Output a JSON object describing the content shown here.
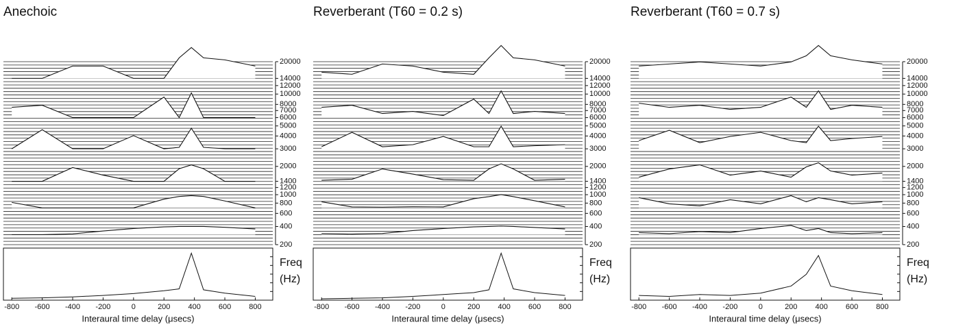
{
  "chart_data": [
    {
      "type": "waterfall",
      "title": "Anechoic",
      "xlabel": "Interaural time delay (μsecs)",
      "ylabel": [
        "Freq",
        "(Hz)"
      ],
      "xlim": [
        -855,
        915
      ],
      "xticks": [
        -800,
        -600,
        -400,
        -200,
        0,
        200,
        400,
        600,
        800
      ],
      "ylim": [
        200,
        20000
      ],
      "yscale": "erb",
      "yticks": [
        200,
        400,
        600,
        800,
        1000,
        1200,
        1400,
        2000,
        3000,
        4000,
        5000,
        6000,
        7000,
        8000,
        10000,
        12000,
        14000,
        20000
      ],
      "x": [
        -800,
        -600,
        -400,
        -200,
        0,
        200,
        300,
        380,
        460,
        600,
        800
      ],
      "traces": [
        {
          "freq": 300,
          "values": [
            0,
            0,
            0.04,
            0.18,
            0.3,
            0.38,
            0.4,
            0.4,
            0.4,
            0.36,
            0.28
          ]
        },
        {
          "freq": 700,
          "values": [
            0.27,
            0,
            0,
            0,
            0,
            0.43,
            0.56,
            0.6,
            0.56,
            0.34,
            0
          ]
        },
        {
          "freq": 1400,
          "values": [
            0,
            0,
            0.67,
            0.3,
            0,
            0,
            0.61,
            0.8,
            0.61,
            0,
            0
          ]
        },
        {
          "freq": 3000,
          "values": [
            0,
            0.93,
            0,
            0,
            0.64,
            0,
            0.07,
            1,
            0.07,
            0,
            0
          ]
        },
        {
          "freq": 6000,
          "values": [
            0.5,
            0.6,
            0,
            0,
            0,
            1,
            0,
            1.2,
            0,
            0,
            0
          ]
        },
        {
          "freq": 14000,
          "values": [
            0,
            0,
            0.6,
            0.6,
            0,
            0,
            1,
            1.5,
            1,
            0.9,
            0.6
          ]
        }
      ],
      "summary": {
        "ylim": [
          0,
          1.05
        ],
        "values": [
          0.04,
          0.05,
          0.07,
          0.1,
          0.14,
          0.2,
          0.24,
          1,
          0.22,
          0.15,
          0.08
        ]
      }
    },
    {
      "type": "waterfall",
      "title": "Reverberant (T60 = 0.2 s)",
      "xlabel": "Interaural time delay (μsecs)",
      "ylabel": [
        "Freq",
        "(Hz)"
      ],
      "xlim": [
        -855,
        915
      ],
      "xticks": [
        -800,
        -600,
        -400,
        -200,
        0,
        200,
        400,
        600,
        800
      ],
      "ylim": [
        200,
        20000
      ],
      "yscale": "erb",
      "yticks": [
        200,
        400,
        600,
        800,
        1000,
        1200,
        1400,
        2000,
        3000,
        4000,
        5000,
        6000,
        7000,
        8000,
        10000,
        12000,
        14000,
        20000
      ],
      "x": [
        -800,
        -600,
        -400,
        -200,
        0,
        200,
        300,
        380,
        460,
        600,
        800
      ],
      "traces": [
        {
          "freq": 300,
          "values": [
            0.05,
            0.03,
            0.06,
            0.2,
            0.3,
            0.38,
            0.4,
            0.42,
            0.4,
            0.35,
            0.28
          ]
        },
        {
          "freq": 700,
          "values": [
            0.3,
            0.05,
            0.04,
            0.06,
            0.05,
            0.45,
            0.55,
            0.65,
            0.55,
            0.35,
            0.05
          ]
        },
        {
          "freq": 1400,
          "values": [
            0.05,
            0.1,
            0.6,
            0.35,
            0.08,
            0.05,
            0.6,
            0.85,
            0.6,
            0.05,
            0.1
          ]
        },
        {
          "freq": 3000,
          "values": [
            0.1,
            0.8,
            0.1,
            0.2,
            0.6,
            0.1,
            0.1,
            1.1,
            0.1,
            0.15,
            0.2
          ]
        },
        {
          "freq": 6000,
          "values": [
            0.5,
            0.6,
            0.2,
            0.3,
            0.1,
            0.9,
            0.2,
            1.3,
            0.2,
            0.3,
            0.2
          ]
        },
        {
          "freq": 14000,
          "values": [
            0.3,
            0.2,
            0.7,
            0.6,
            0.3,
            0.2,
            1,
            1.6,
            1,
            0.9,
            0.6
          ]
        }
      ],
      "summary": {
        "ylim": [
          0,
          1.05
        ],
        "values": [
          0.03,
          0.04,
          0.05,
          0.08,
          0.12,
          0.16,
          0.22,
          1,
          0.24,
          0.16,
          0.1
        ]
      }
    },
    {
      "type": "waterfall",
      "title": "Reverberant (T60 = 0.7 s)",
      "xlabel": "Interaural time delay (μsecs)",
      "ylabel": [
        "Freq",
        "(Hz)"
      ],
      "xlim": [
        -855,
        915
      ],
      "xticks": [
        -800,
        -600,
        -400,
        -200,
        0,
        200,
        400,
        600,
        800
      ],
      "ylim": [
        200,
        20000
      ],
      "yscale": "erb",
      "yticks": [
        200,
        400,
        600,
        800,
        1000,
        1200,
        1400,
        2000,
        3000,
        4000,
        5000,
        6000,
        7000,
        8000,
        10000,
        12000,
        14000,
        20000
      ],
      "x": [
        -800,
        -600,
        -400,
        -200,
        0,
        200,
        300,
        380,
        460,
        600,
        800
      ],
      "traces": [
        {
          "freq": 300,
          "values": [
            0.1,
            0.05,
            0.15,
            0.1,
            0.3,
            0.45,
            0.2,
            0.3,
            0.1,
            0.05,
            0.1
          ]
        },
        {
          "freq": 700,
          "values": [
            0.5,
            0.2,
            0.1,
            0.4,
            0.2,
            0.6,
            0.3,
            0.5,
            0.4,
            0.2,
            0.3
          ]
        },
        {
          "freq": 1400,
          "values": [
            0.2,
            0.6,
            0.8,
            0.3,
            0.5,
            0.2,
            0.7,
            0.9,
            0.5,
            0.3,
            0.4
          ]
        },
        {
          "freq": 3000,
          "values": [
            0.4,
            0.9,
            0.3,
            0.6,
            0.8,
            0.4,
            0.3,
            1.1,
            0.4,
            0.5,
            0.6
          ]
        },
        {
          "freq": 6000,
          "values": [
            0.7,
            0.5,
            0.6,
            0.4,
            0.5,
            1,
            0.5,
            1.3,
            0.4,
            0.6,
            0.5
          ]
        },
        {
          "freq": 14000,
          "values": [
            0.6,
            0.7,
            0.8,
            0.7,
            0.6,
            0.8,
            1.1,
            1.6,
            1.1,
            0.9,
            0.7
          ]
        }
      ],
      "summary": {
        "ylim": [
          0,
          1.05
        ],
        "values": [
          0.1,
          0.08,
          0.12,
          0.1,
          0.15,
          0.3,
          0.55,
          0.95,
          0.3,
          0.2,
          0.12
        ]
      }
    }
  ]
}
